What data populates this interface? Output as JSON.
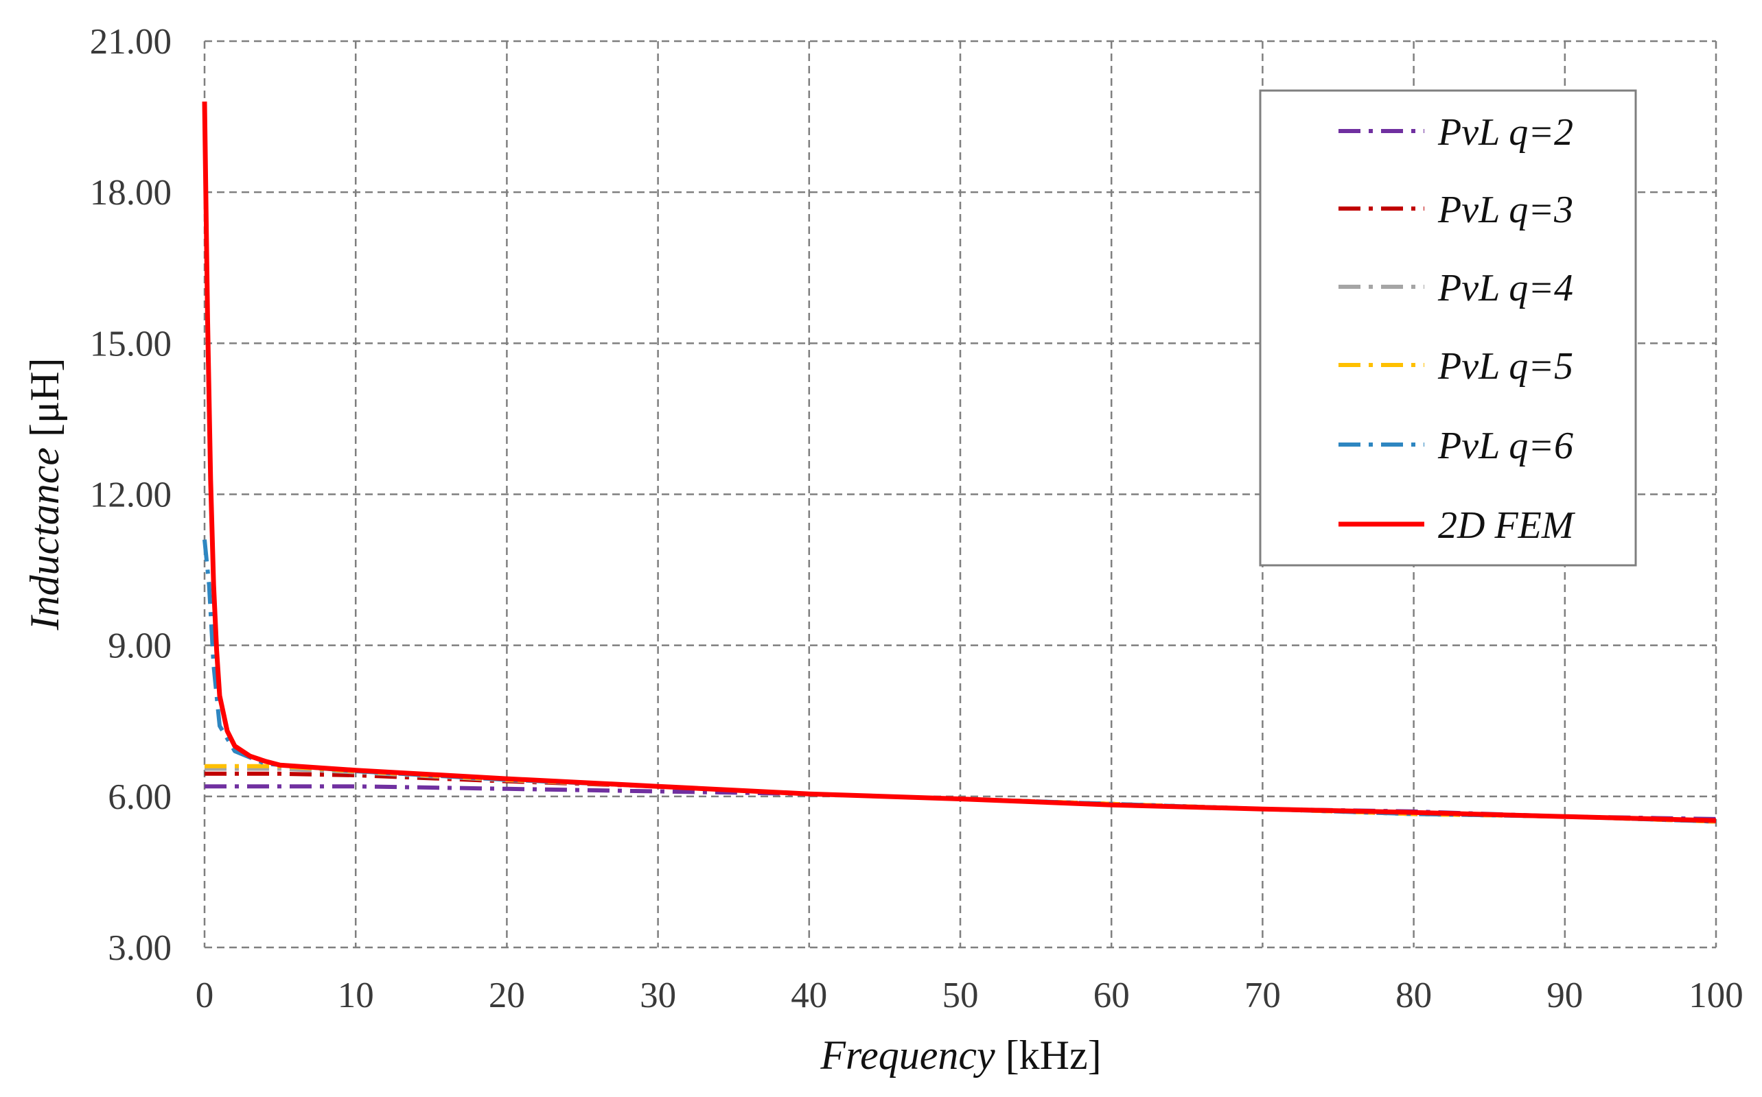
{
  "chart_data": {
    "type": "line",
    "title": "",
    "xlabel": {
      "italic": "Frequency",
      "unit": "[kHz]"
    },
    "ylabel": {
      "italic": "Inductance",
      "unit": "[μH]"
    },
    "xlim": [
      0,
      100
    ],
    "ylim": [
      3,
      21
    ],
    "xticks": [
      0,
      10,
      20,
      30,
      40,
      50,
      60,
      70,
      80,
      90,
      100
    ],
    "xtick_labels": [
      "0",
      "10",
      "20",
      "30",
      "40",
      "50",
      "60",
      "70",
      "80",
      "90",
      "100"
    ],
    "yticks": [
      3,
      6,
      9,
      12,
      15,
      18,
      21
    ],
    "ytick_labels": [
      "3.00",
      "6.00",
      "9.00",
      "12.00",
      "15.00",
      "18.00",
      "21.00"
    ],
    "grid": true,
    "grid_style": "dashed",
    "legend_position": "top-right",
    "series": [
      {
        "name": "PvL q=2",
        "color": "#7030a0",
        "dash": "dashdot",
        "x": [
          0,
          5,
          10,
          20,
          30,
          40,
          50,
          60,
          70,
          80,
          90,
          100
        ],
        "y": [
          6.2,
          6.2,
          6.2,
          6.15,
          6.1,
          6.05,
          5.95,
          5.85,
          5.75,
          5.7,
          5.6,
          5.55
        ]
      },
      {
        "name": "PvL q=3",
        "color": "#c00000",
        "dash": "dashdot",
        "x": [
          0,
          5,
          10,
          20,
          30,
          40,
          50,
          60,
          70,
          80,
          90,
          100
        ],
        "y": [
          6.45,
          6.45,
          6.42,
          6.3,
          6.2,
          6.05,
          5.95,
          5.85,
          5.75,
          5.65,
          5.6,
          5.5
        ]
      },
      {
        "name": "PvL q=4",
        "color": "#a5a5a5",
        "dash": "dashdot",
        "x": [
          0,
          5,
          10,
          20,
          30,
          40,
          50,
          60,
          70,
          80,
          90,
          100
        ],
        "y": [
          6.55,
          6.55,
          6.48,
          6.32,
          6.2,
          6.05,
          5.95,
          5.85,
          5.75,
          5.65,
          5.6,
          5.5
        ]
      },
      {
        "name": "PvL q=5",
        "color": "#ffc000",
        "dash": "dashdot",
        "x": [
          0,
          4,
          5,
          10,
          20,
          30,
          40,
          50,
          60,
          70,
          80,
          90,
          100
        ],
        "y": [
          6.6,
          6.6,
          6.6,
          6.5,
          6.33,
          6.2,
          6.05,
          5.95,
          5.85,
          5.75,
          5.65,
          5.6,
          5.5
        ]
      },
      {
        "name": "PvL q=6",
        "color": "#2e86c1",
        "dash": "dashdot",
        "x": [
          0,
          0.3,
          0.6,
          1,
          2,
          4,
          10,
          20,
          30,
          40,
          50,
          60,
          70,
          80,
          90,
          100
        ],
        "y": [
          11.1,
          10.2,
          8.6,
          7.4,
          6.9,
          6.65,
          6.5,
          6.33,
          6.2,
          6.05,
          5.95,
          5.85,
          5.75,
          5.65,
          5.6,
          5.5
        ]
      },
      {
        "name": "2D FEM",
        "color": "#ff0000",
        "dash": "solid",
        "x": [
          0,
          0.2,
          0.4,
          0.6,
          0.8,
          1,
          1.5,
          2,
          3,
          4,
          5,
          10,
          20,
          30,
          40,
          50,
          60,
          70,
          80,
          90,
          100
        ],
        "y": [
          19.8,
          15.5,
          12.3,
          10.2,
          8.9,
          8.0,
          7.3,
          7.0,
          6.8,
          6.7,
          6.62,
          6.52,
          6.35,
          6.2,
          6.05,
          5.95,
          5.83,
          5.75,
          5.68,
          5.6,
          5.52
        ]
      }
    ]
  }
}
